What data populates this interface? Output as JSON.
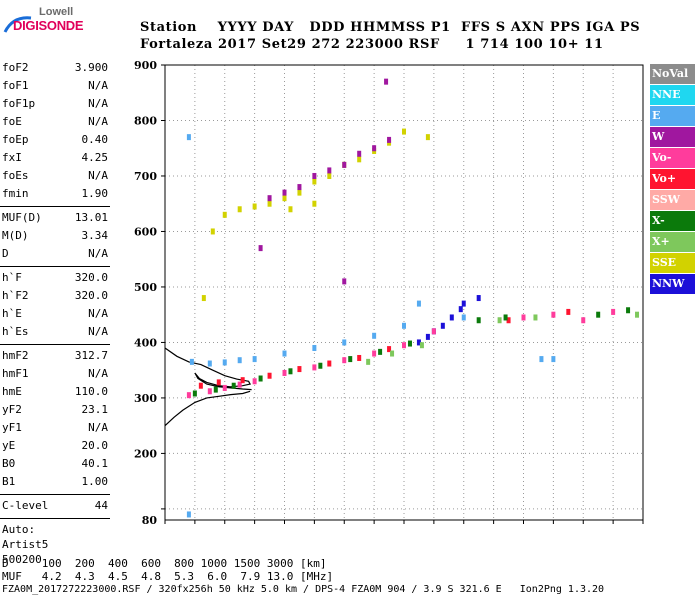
{
  "logo": {
    "top": "Lowell",
    "bottom": "DIGISONDE"
  },
  "header": {
    "line1": "Station    YYYY DAY   DDD HHMMSS P1  FFS S AXN PPS IGA PS",
    "line2": "Fortaleza 2017 Set29 272 223000 RSF     1 714 100 10+ 11"
  },
  "params": {
    "group1": [
      {
        "name": "foF2",
        "value": "3.900"
      },
      {
        "name": "foF1",
        "value": "N/A"
      },
      {
        "name": "foF1p",
        "value": "N/A"
      },
      {
        "name": "foE",
        "value": "N/A"
      },
      {
        "name": "foEp",
        "value": "0.40"
      },
      {
        "name": "fxI",
        "value": "4.25"
      },
      {
        "name": "foEs",
        "value": "N/A"
      },
      {
        "name": "fmin",
        "value": "1.90"
      }
    ],
    "group2": [
      {
        "name": "MUF(D)",
        "value": "13.01"
      },
      {
        "name": "M(D)",
        "value": "3.34"
      },
      {
        "name": "D",
        "value": "N/A"
      }
    ],
    "group3": [
      {
        "name": "h`F",
        "value": "320.0"
      },
      {
        "name": "h`F2",
        "value": "320.0"
      },
      {
        "name": "h`E",
        "value": "N/A"
      },
      {
        "name": "h`Es",
        "value": "N/A"
      }
    ],
    "group4": [
      {
        "name": "hmF2",
        "value": "312.7"
      },
      {
        "name": "hmF1",
        "value": "N/A"
      },
      {
        "name": "hmE",
        "value": "110.0"
      },
      {
        "name": "yF2",
        "value": "23.1"
      },
      {
        "name": "yF1",
        "value": "N/A"
      },
      {
        "name": "yE",
        "value": "20.0"
      },
      {
        "name": "B0",
        "value": "40.1"
      },
      {
        "name": "B1",
        "value": "1.00"
      }
    ],
    "clevel": {
      "name": "C-level",
      "value": "44"
    },
    "auto": "Auto:",
    "artist": "Artist5",
    "code": "500200"
  },
  "legend": [
    {
      "label": "NoVal",
      "color": "#8c8c8c"
    },
    {
      "label": "NNE",
      "color": "#1fd7f0"
    },
    {
      "label": "E",
      "color": "#55aaf0"
    },
    {
      "label": "W",
      "color": "#a0179f"
    },
    {
      "label": "Vo-",
      "color": "#ff3c9c"
    },
    {
      "label": "Vo+",
      "color": "#ff1430"
    },
    {
      "label": "SSW",
      "color": "#ffaaa6"
    },
    {
      "label": "X-",
      "color": "#0b7a0b"
    },
    {
      "label": "X+",
      "color": "#7ec85c"
    },
    {
      "label": "SSE",
      "color": "#d2d200"
    },
    {
      "label": "NNW",
      "color": "#1c10d8"
    }
  ],
  "footer": {
    "line1": "D     100  200  400  600  800 1000 1500 3000 [km]",
    "line2": "MUF   4.2  4.3  4.5  4.8  5.3  6.0  7.9 13.0 [MHz]",
    "line3": "FZA0M_2017272223000.RSF / 320fx256h 50 kHz 5.0 km / DPS-4 FZA0M 904 / 3.9 S 321.6 E   Ion2Png 1.3.20"
  },
  "chart_data": {
    "type": "scatter",
    "title": "",
    "xlabel": "",
    "ylabel": "",
    "xlim": [
      1,
      17
    ],
    "ylim": [
      80,
      900
    ],
    "x_ticks": [
      1,
      2,
      3,
      4,
      5,
      6,
      7,
      8,
      9,
      10,
      11,
      12,
      13,
      14,
      15,
      16,
      17
    ],
    "y_ticks": [
      100,
      200,
      300,
      400,
      500,
      600,
      700,
      800,
      900
    ],
    "y_labels": [
      {
        "v": 80,
        "t": "80"
      },
      {
        "v": 200,
        "t": "200"
      },
      {
        "v": 300,
        "t": "300"
      },
      {
        "v": 400,
        "t": "400"
      },
      {
        "v": 500,
        "t": "500"
      },
      {
        "v": 600,
        "t": "600"
      },
      {
        "v": 700,
        "t": "700"
      },
      {
        "v": 800,
        "t": "800"
      },
      {
        "v": 900,
        "t": "900"
      }
    ],
    "series": [
      {
        "name": "E",
        "color": "#55aaf0",
        "points": [
          [
            1.9,
            365
          ],
          [
            2.5,
            362
          ],
          [
            3,
            364
          ],
          [
            3.5,
            368
          ],
          [
            4,
            370
          ],
          [
            5,
            380
          ],
          [
            6,
            390
          ],
          [
            7,
            400
          ],
          [
            8,
            412
          ],
          [
            9,
            430
          ],
          [
            9.5,
            470
          ],
          [
            11,
            445
          ],
          [
            13.6,
            370
          ],
          [
            14,
            370
          ],
          [
            1.8,
            770
          ],
          [
            1.8,
            90
          ]
        ]
      },
      {
        "name": "NNW",
        "color": "#1c10d8",
        "points": [
          [
            9.5,
            400
          ],
          [
            9.8,
            410
          ],
          [
            10,
            420
          ],
          [
            10.3,
            430
          ],
          [
            10.6,
            445
          ],
          [
            10.9,
            460
          ],
          [
            11,
            470
          ],
          [
            11.5,
            480
          ]
        ]
      },
      {
        "name": "Vo-",
        "color": "#ff3c9c",
        "points": [
          [
            1.8,
            305
          ],
          [
            2.5,
            312
          ],
          [
            3,
            318
          ],
          [
            3.5,
            324
          ],
          [
            4,
            330
          ],
          [
            5,
            345
          ],
          [
            6,
            355
          ],
          [
            7,
            368
          ],
          [
            8,
            380
          ],
          [
            9,
            395
          ],
          [
            10,
            420
          ],
          [
            13,
            445
          ],
          [
            14,
            450
          ],
          [
            15,
            440
          ],
          [
            16,
            455
          ]
        ]
      },
      {
        "name": "Vo+",
        "color": "#ff1430",
        "points": [
          [
            2.2,
            322
          ],
          [
            2.8,
            328
          ],
          [
            3.6,
            332
          ],
          [
            4.5,
            340
          ],
          [
            5.5,
            352
          ],
          [
            6.5,
            362
          ],
          [
            7.5,
            372
          ],
          [
            8.5,
            388
          ],
          [
            12.5,
            440
          ],
          [
            14.5,
            455
          ]
        ]
      },
      {
        "name": "X-",
        "color": "#0b7a0b",
        "points": [
          [
            2,
            308
          ],
          [
            2.7,
            315
          ],
          [
            3.3,
            322
          ],
          [
            4.2,
            335
          ],
          [
            5.2,
            348
          ],
          [
            6.2,
            358
          ],
          [
            7.2,
            370
          ],
          [
            8.2,
            383
          ],
          [
            9.2,
            398
          ],
          [
            11.5,
            440
          ],
          [
            12.4,
            445
          ],
          [
            15.5,
            450
          ],
          [
            16.5,
            458
          ]
        ]
      },
      {
        "name": "SSE",
        "color": "#d2d200",
        "points": [
          [
            2.6,
            600
          ],
          [
            3,
            630
          ],
          [
            3.5,
            640
          ],
          [
            4,
            645
          ],
          [
            4.5,
            650
          ],
          [
            5,
            660
          ],
          [
            5.5,
            670
          ],
          [
            6,
            690
          ],
          [
            6.5,
            700
          ],
          [
            7,
            720
          ],
          [
            7.5,
            730
          ],
          [
            8,
            745
          ],
          [
            8.5,
            760
          ],
          [
            9,
            780
          ],
          [
            9.8,
            770
          ],
          [
            2.3,
            480
          ],
          [
            5.2,
            640
          ],
          [
            6,
            650
          ]
        ]
      },
      {
        "name": "W",
        "color": "#a0179f",
        "points": [
          [
            4.5,
            660
          ],
          [
            5,
            670
          ],
          [
            5.5,
            680
          ],
          [
            6,
            700
          ],
          [
            6.5,
            710
          ],
          [
            7,
            720
          ],
          [
            7.5,
            740
          ],
          [
            8,
            750
          ],
          [
            8.5,
            765
          ],
          [
            8.4,
            870
          ],
          [
            4.2,
            570
          ],
          [
            7,
            510
          ]
        ]
      },
      {
        "name": "X+",
        "color": "#7ec85c",
        "points": [
          [
            7.8,
            365
          ],
          [
            8.6,
            380
          ],
          [
            9.6,
            395
          ],
          [
            12.2,
            440
          ],
          [
            13.4,
            445
          ],
          [
            16.8,
            450
          ]
        ]
      }
    ],
    "lines": [
      {
        "name": "profile-upper",
        "points": [
          [
            1,
            390
          ],
          [
            1.4,
            375
          ],
          [
            1.8,
            365
          ],
          [
            2.2,
            360
          ],
          [
            2.6,
            350
          ],
          [
            3,
            340
          ],
          [
            3.4,
            334
          ],
          [
            3.8,
            330
          ],
          [
            3.85,
            325
          ],
          [
            3.6,
            322
          ],
          [
            3.2,
            320
          ],
          [
            2.8,
            322
          ],
          [
            2.4,
            328
          ],
          [
            2.15,
            335
          ],
          [
            2,
            345
          ],
          [
            2.1,
            335
          ],
          [
            2.4,
            325
          ],
          [
            2.8,
            320
          ],
          [
            3.2,
            318
          ],
          [
            3.6,
            316
          ],
          [
            3.9,
            315
          ]
        ]
      },
      {
        "name": "profile-lower",
        "points": [
          [
            1,
            250
          ],
          [
            1.3,
            265
          ],
          [
            1.6,
            278
          ],
          [
            2,
            292
          ],
          [
            2.4,
            300
          ],
          [
            2.8,
            303
          ],
          [
            3.2,
            306
          ],
          [
            3.6,
            308
          ],
          [
            3.85,
            312
          ]
        ]
      }
    ]
  }
}
